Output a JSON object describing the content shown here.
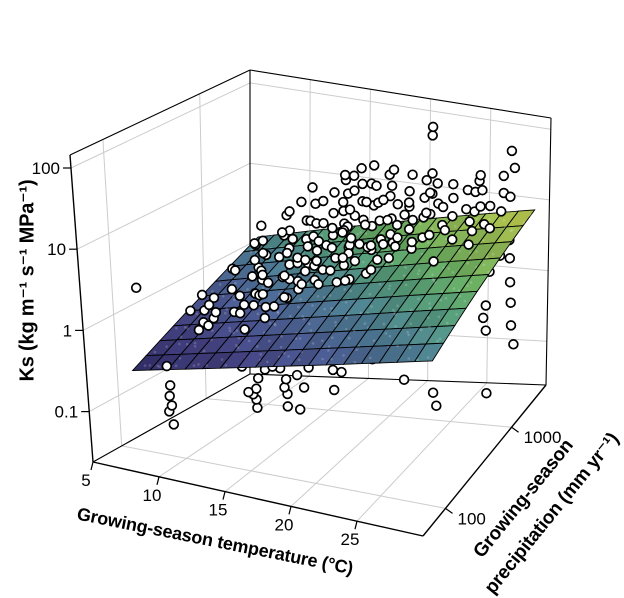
{
  "chart_data": {
    "type": "scatter",
    "projection": "3d-surface-scatter",
    "title": "",
    "xlabel": "Growing-season  temperature (°C)",
    "ylabel_lines": [
      "Growing-season",
      "precipitation (mm yr⁻¹)"
    ],
    "zlabel": "Ks (kg m⁻¹ s⁻¹ MPa⁻¹)",
    "x_axis": {
      "scale": "linear",
      "range": [
        5,
        30
      ],
      "ticks": [
        5,
        10,
        15,
        20,
        25
      ],
      "grid_ticks": [
        10,
        15,
        20,
        25
      ]
    },
    "y_axis": {
      "scale": "log",
      "range_log10": [
        1.66,
        3.52
      ],
      "ticks": [
        100,
        1000
      ]
    },
    "z_axis": {
      "scale": "log",
      "range_log10": [
        -1.62,
        2.16
      ],
      "ticks": [
        0.1,
        1,
        10,
        100
      ]
    },
    "legend": "none",
    "grid": true,
    "colors": {
      "grid": "#cccccc",
      "frame": "#000000",
      "text": "#000000",
      "background": "#ffffff"
    },
    "marker": {
      "shape": "circle",
      "fill": "#ffffff",
      "stroke": "#000000"
    },
    "fit_plane": {
      "formula": "log10(Ks) = -1.96 + 0.033*T + 0.55*log10(P)",
      "a": -1.96,
      "b": 0.033,
      "c": 0.55,
      "extent_u": [
        0.048,
        0.968
      ],
      "extent_v": [
        0.183,
        0.962
      ],
      "mesh": [
        17,
        9
      ],
      "colormap": [
        [
          0.0,
          "#2d2a62"
        ],
        [
          0.18,
          "#423f7d"
        ],
        [
          0.34,
          "#4a5c91"
        ],
        [
          0.48,
          "#4d7d92"
        ],
        [
          0.6,
          "#53987b"
        ],
        [
          0.72,
          "#64a75f"
        ],
        [
          0.84,
          "#8db754"
        ],
        [
          1.0,
          "#c2cb4d"
        ]
      ]
    },
    "sites": [
      [
        7,
        95,
        [
          2.6
        ]
      ],
      [
        9,
        100,
        [
          0.06,
          0.08,
          0.1,
          0.13,
          0.18,
          0.3
        ]
      ],
      [
        10,
        150,
        [
          0.35,
          0.7,
          1.2
        ]
      ],
      [
        10.5,
        160,
        [
          0.85,
          1.2,
          1.9
        ]
      ],
      [
        10,
        220,
        [
          0.25,
          0.6,
          1.1
        ]
      ],
      [
        11,
        180,
        [
          0.28,
          0.9,
          1.1,
          1.6
        ]
      ],
      [
        11,
        300,
        [
          0.4,
          0.8,
          1.5,
          2.8
        ]
      ],
      [
        11.5,
        450,
        [
          0.04,
          0.05,
          0.06,
          0.07,
          0.09
        ]
      ],
      [
        12,
        250,
        [
          0.2,
          0.45,
          0.9,
          1.5,
          3
        ]
      ],
      [
        12,
        400,
        [
          0.6,
          1.2,
          2.4,
          4.8
        ]
      ],
      [
        12.5,
        320,
        [
          0.5,
          1,
          1.4,
          2.2,
          3.5,
          6
        ]
      ],
      [
        13,
        200,
        [
          0.12,
          0.3,
          0.7,
          1.4
        ]
      ],
      [
        13,
        350,
        [
          0.15,
          0.3,
          0.55,
          0.9,
          1.3,
          1.9,
          2.6,
          4,
          6,
          9
        ]
      ],
      [
        13.5,
        280,
        [
          0.35,
          0.8,
          1.6,
          2.8,
          5
        ]
      ],
      [
        13.5,
        480,
        [
          0.045,
          0.06,
          0.075,
          0.1,
          0.13,
          0.17,
          0.22
        ]
      ],
      [
        13,
        600,
        [
          0.8,
          1.5,
          2.7,
          5,
          9
        ]
      ],
      [
        14,
        300,
        [
          0.2,
          0.5,
          1.1,
          2.2
        ]
      ],
      [
        14,
        500,
        [
          0.3,
          0.6,
          1,
          1.7,
          2.7,
          4.2,
          7,
          12
        ]
      ],
      [
        14,
        800,
        [
          1,
          2,
          3.8,
          7,
          12
        ]
      ],
      [
        14.5,
        380,
        [
          0.25,
          0.6,
          1.2,
          2.3,
          4.5,
          8
        ]
      ],
      [
        15,
        450,
        [
          0.12,
          0.3,
          0.7,
          1.5,
          3,
          6
        ]
      ],
      [
        15,
        550,
        [
          0.25,
          0.55,
          1.1,
          2.2,
          4.4
        ]
      ],
      [
        15,
        700,
        [
          0.4,
          0.8,
          1.4,
          2.1,
          3.3,
          5,
          8,
          13,
          20
        ]
      ],
      [
        15.5,
        400,
        [
          0.05,
          0.09,
          2,
          3.8
        ]
      ],
      [
        16,
        400,
        [
          0.18,
          0.4,
          0.9,
          1.9,
          3.8
        ]
      ],
      [
        16,
        550,
        [
          0.35,
          0.75,
          1.5,
          2.9,
          5.5,
          9
        ]
      ],
      [
        16,
        700,
        [
          0.45,
          0.95,
          2,
          4,
          7.5,
          14
        ]
      ],
      [
        16,
        900,
        [
          0.6,
          1.2,
          2.4,
          4.6,
          9,
          16
        ]
      ],
      [
        16,
        1200,
        [
          1.3,
          2.6,
          5.2,
          10,
          19
        ]
      ],
      [
        17,
        600,
        [
          0.07,
          0.12,
          0.5,
          1.1,
          2.2,
          4.4,
          8
        ]
      ],
      [
        17,
        900,
        [
          0.5,
          1,
          2,
          3.5,
          6,
          10,
          16,
          28
        ]
      ],
      [
        17,
        1100,
        [
          0.9,
          1.9,
          3.8,
          7.5,
          15,
          25
        ]
      ],
      [
        17.5,
        750,
        [
          0.3,
          0.7,
          1.6,
          3.2,
          6.5,
          12
        ]
      ],
      [
        18,
        450,
        [
          0.15,
          0.4,
          0.9,
          2
        ]
      ],
      [
        18,
        600,
        [
          0.3,
          0.8,
          1.8,
          3.5,
          7
        ]
      ],
      [
        18,
        1000,
        [
          0.9,
          1.8,
          3.6,
          7,
          13,
          22,
          35
        ]
      ],
      [
        18,
        1300,
        [
          1.2,
          2.5,
          5,
          9.5,
          18,
          30
        ]
      ],
      [
        19,
        800,
        [
          0.4,
          0.9,
          1.9,
          4,
          8,
          15
        ]
      ],
      [
        19,
        1100,
        [
          0.6,
          1.2,
          2.2,
          4,
          7,
          12,
          20
        ]
      ],
      [
        19,
        1500,
        [
          1.5,
          3,
          6,
          12,
          22
        ]
      ],
      [
        20,
        600,
        [
          0.2,
          0.5,
          1.2,
          2.6,
          5.2
        ]
      ],
      [
        20,
        900,
        [
          0.5,
          1,
          2.1,
          4.2,
          8.5,
          16
        ]
      ],
      [
        20,
        1250,
        [
          0.8,
          1.6,
          3.2,
          6,
          11,
          19,
          30
        ]
      ],
      [
        21,
        700,
        [
          0.35,
          0.8,
          1.7,
          3.6,
          7
        ]
      ],
      [
        21,
        1000,
        [
          0.07,
          0.5,
          1.1,
          2.4,
          5,
          10
        ]
      ],
      [
        21,
        1300,
        [
          0.8,
          1.5,
          3,
          5.5,
          10,
          17,
          28
        ]
      ],
      [
        22,
        1000,
        [
          0.5,
          1.1,
          2.3,
          4.5,
          9,
          15
        ]
      ],
      [
        22,
        1400,
        [
          1,
          2,
          4,
          7.5,
          14,
          24
        ]
      ],
      [
        22,
        1800,
        [
          1.8,
          3.6,
          7,
          13,
          24
        ]
      ],
      [
        23,
        1100,
        [
          0.6,
          1.3,
          2.8,
          5.5,
          11,
          20
        ]
      ],
      [
        23,
        1300,
        [
          100,
          130
        ]
      ],
      [
        23,
        1600,
        [
          1.4,
          2.8,
          5.5,
          11,
          20
        ]
      ],
      [
        24,
        900,
        [
          0.04,
          0.06,
          1.5,
          3
        ]
      ],
      [
        24,
        1200,
        [
          0.7,
          1.5,
          3.2,
          6.5,
          13
        ]
      ],
      [
        24,
        1500,
        [
          1,
          2,
          4,
          8,
          14,
          22
        ]
      ],
      [
        25,
        1700,
        [
          1.2,
          2.5,
          5,
          10,
          18
        ]
      ],
      [
        25,
        2000,
        [
          2,
          4,
          8,
          15
        ]
      ],
      [
        25,
        2400,
        [
          18,
          22
        ]
      ],
      [
        26,
        1200,
        [
          1,
          2.2,
          4.5,
          9
        ]
      ],
      [
        26,
        1800,
        [
          1.5,
          3,
          6,
          11,
          18
        ]
      ],
      [
        26,
        2000,
        [
          0.03,
          0.2,
          0.3,
          0.45,
          2.5,
          5
        ]
      ],
      [
        27,
        1600,
        [
          1.6,
          3.2,
          6.5,
          13
        ]
      ],
      [
        27,
        2200,
        [
          2,
          4,
          8,
          15,
          25
        ]
      ],
      [
        27.5,
        2600,
        [
          0.11,
          0.2,
          0.4,
          0.8,
          1.6,
          3,
          6,
          12,
          30,
          50
        ]
      ]
    ]
  }
}
